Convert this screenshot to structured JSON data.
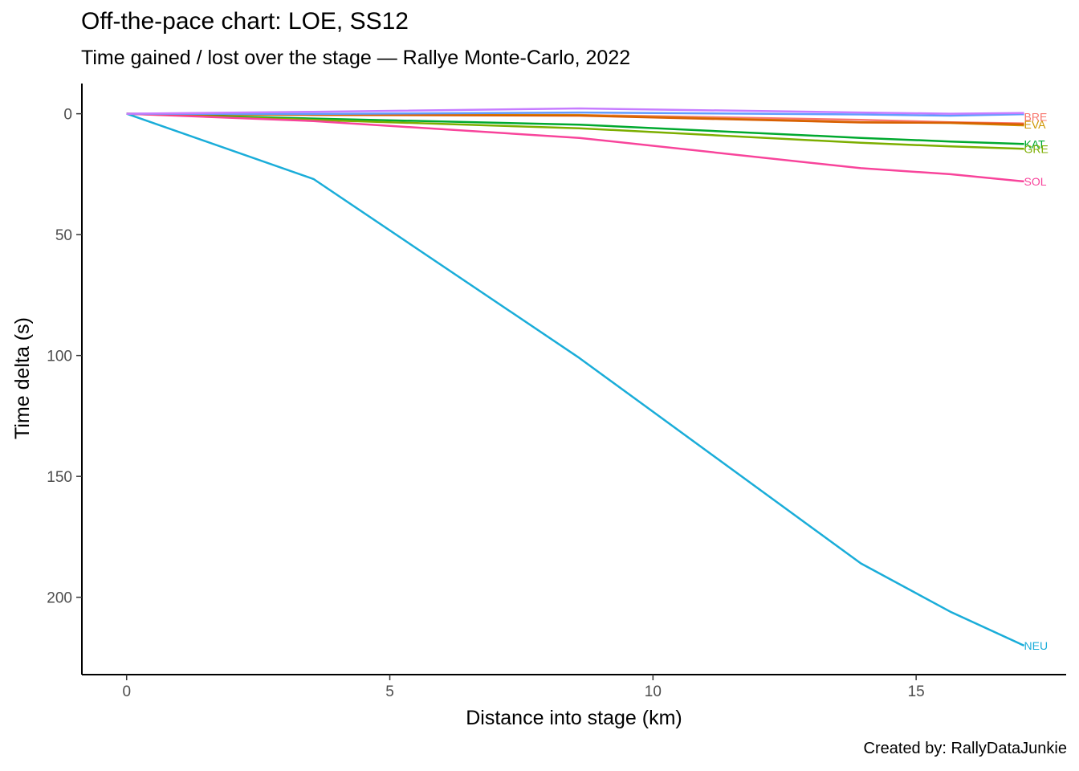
{
  "chart_data": {
    "type": "line",
    "title": "Off-the-pace chart: LOE, SS12",
    "subtitle": "Time gained / lost over the stage — Rallye Monte-Carlo, 2022",
    "xlabel": "Distance into stage (km)",
    "ylabel": "Time delta (s)",
    "caption": "Created by: RallyDataJunkie",
    "xlim": [
      -0.85,
      17.85
    ],
    "ylim": [
      -12.5,
      232
    ],
    "y_reversed": true,
    "grid": false,
    "legend": "none (series labelled at line ends)",
    "x_ticks": [
      0,
      5,
      10,
      15
    ],
    "y_ticks": [
      0,
      50,
      100,
      150,
      200
    ],
    "series": [
      {
        "name": "BRE",
        "color": "#F8766D",
        "label_offset": -8,
        "x": [
          0,
          3.55,
          8.6,
          13.95,
          15.65,
          17.05
        ],
        "y": [
          0,
          0.3,
          0.5,
          2.5,
          3.5,
          4.0
        ]
      },
      {
        "name": "EVA",
        "color": "#CD9600",
        "label_offset": -1,
        "x": [
          0,
          3.55,
          8.6,
          13.95,
          15.65,
          17.05
        ],
        "y": [
          0,
          0.4,
          0.6,
          3.5,
          3.8,
          4.8
        ]
      },
      {
        "name": "KAT",
        "color": "#00A92F",
        "label_offset": 0,
        "x": [
          0,
          3.55,
          8.6,
          13.95,
          15.65,
          17.05
        ],
        "y": [
          0,
          2.0,
          4.5,
          10.0,
          11.5,
          12.5
        ]
      },
      {
        "name": "GRE",
        "color": "#7CAE00",
        "label_offset": 0,
        "x": [
          0,
          3.55,
          8.6,
          13.95,
          15.65,
          17.05
        ],
        "y": [
          0,
          2.5,
          6.0,
          12.0,
          13.5,
          14.5
        ]
      },
      {
        "name": "SOL",
        "color": "#F8449B",
        "label_offset": 0,
        "x": [
          0,
          3.55,
          8.6,
          13.95,
          15.65,
          17.05
        ],
        "y": [
          0,
          3.0,
          10.0,
          22.5,
          25.0,
          28.0
        ]
      },
      {
        "name": "NEU",
        "color": "#1AADD9",
        "label_offset": 0,
        "x": [
          0,
          3.55,
          8.6,
          13.95,
          15.65,
          17.05
        ],
        "y": [
          0,
          27.0,
          101.0,
          186.0,
          206.0,
          220.0
        ]
      },
      {
        "name": "",
        "color": "#D95F02",
        "x": [
          0,
          3.55,
          8.6,
          13.95,
          15.65,
          17.05
        ],
        "y": [
          0,
          0.5,
          0.8,
          3.6,
          3.7,
          4.4
        ]
      },
      {
        "name": "",
        "color": "#619CFF",
        "x": [
          0,
          3.55,
          8.6,
          13.95,
          15.65,
          17.05
        ],
        "y": [
          0,
          0.1,
          -0.5,
          0.3,
          0.8,
          0.2
        ]
      },
      {
        "name": "",
        "color": "#C77CFF",
        "x": [
          0,
          3.55,
          8.6,
          13.95,
          15.65,
          17.05
        ],
        "y": [
          0,
          -0.8,
          -2.2,
          -0.5,
          0.0,
          -0.3
        ]
      }
    ]
  }
}
